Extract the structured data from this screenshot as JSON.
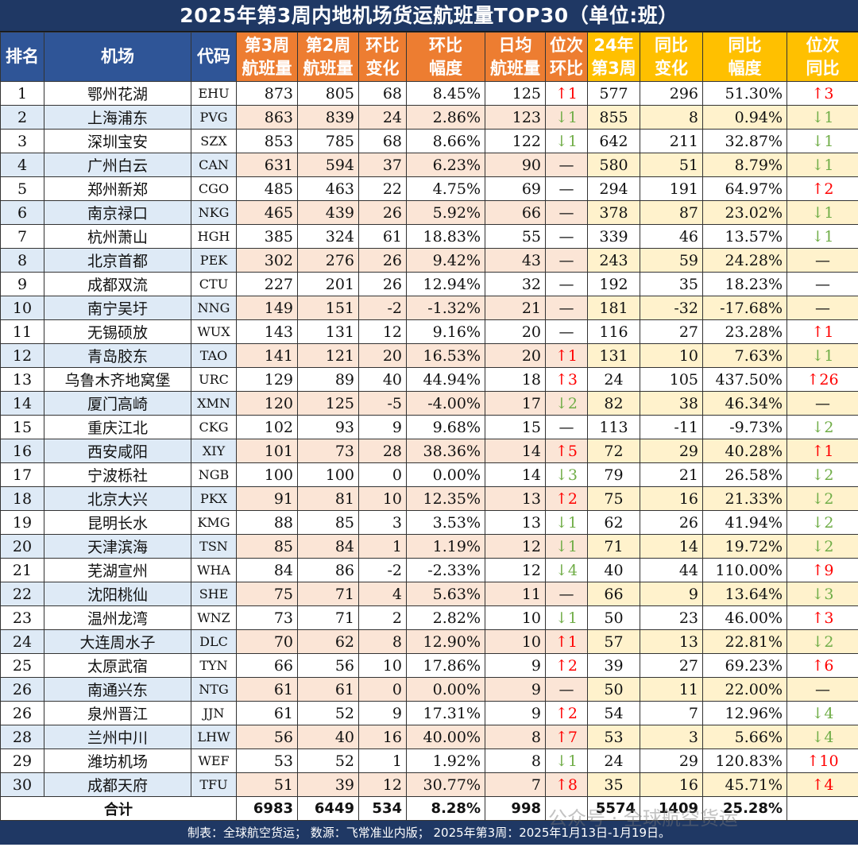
{
  "title": "2025年第3周内地机场货运航班量TOP30（单位:班）",
  "headers": [
    {
      "l1": "排名",
      "l2": "",
      "style": "blue"
    },
    {
      "l1": "机场",
      "l2": "",
      "style": "blue"
    },
    {
      "l1": "代码",
      "l2": "",
      "style": "blue"
    },
    {
      "l1": "第3周",
      "l2": "航班量",
      "style": "orange"
    },
    {
      "l1": "第2周",
      "l2": "航班量",
      "style": "orange"
    },
    {
      "l1": "环比",
      "l2": "变化",
      "style": "orange"
    },
    {
      "l1": "环比",
      "l2": "幅度",
      "style": "orange"
    },
    {
      "l1": "日均",
      "l2": "航班量",
      "style": "orange"
    },
    {
      "l1": "位次",
      "l2": "环比",
      "style": "orange"
    },
    {
      "l1": "24年",
      "l2": "第3周",
      "style": "gold"
    },
    {
      "l1": "同比",
      "l2": "变化",
      "style": "gold"
    },
    {
      "l1": "同比",
      "l2": "幅度",
      "style": "gold"
    },
    {
      "l1": "位次",
      "l2": "同比",
      "style": "gold"
    }
  ],
  "rows": [
    {
      "rank": "1",
      "airport": "鄂州花湖",
      "code": "EHU",
      "w3": "873",
      "w2": "805",
      "mom": "68",
      "momPct": "8.45%",
      "daily": "125",
      "rankMom": {
        "dir": "up",
        "text": "↑1"
      },
      "ly": "577",
      "yoy": "296",
      "yoyPct": "51.30%",
      "rankYoy": {
        "dir": "up",
        "text": "↑3"
      }
    },
    {
      "rank": "2",
      "airport": "上海浦东",
      "code": "PVG",
      "w3": "863",
      "w2": "839",
      "mom": "24",
      "momPct": "2.86%",
      "daily": "123",
      "rankMom": {
        "dir": "down",
        "text": "↓1"
      },
      "ly": "855",
      "yoy": "8",
      "yoyPct": "0.94%",
      "rankYoy": {
        "dir": "down",
        "text": "↓1"
      }
    },
    {
      "rank": "3",
      "airport": "深圳宝安",
      "code": "SZX",
      "w3": "853",
      "w2": "785",
      "mom": "68",
      "momPct": "8.66%",
      "daily": "122",
      "rankMom": {
        "dir": "down",
        "text": "↓1"
      },
      "ly": "642",
      "yoy": "211",
      "yoyPct": "32.87%",
      "rankYoy": {
        "dir": "down",
        "text": "↓1"
      }
    },
    {
      "rank": "4",
      "airport": "广州白云",
      "code": "CAN",
      "w3": "631",
      "w2": "594",
      "mom": "37",
      "momPct": "6.23%",
      "daily": "90",
      "rankMom": {
        "dir": "same",
        "text": "—"
      },
      "ly": "580",
      "yoy": "51",
      "yoyPct": "8.79%",
      "rankYoy": {
        "dir": "down",
        "text": "↓1"
      }
    },
    {
      "rank": "5",
      "airport": "郑州新郑",
      "code": "CGO",
      "w3": "485",
      "w2": "463",
      "mom": "22",
      "momPct": "4.75%",
      "daily": "69",
      "rankMom": {
        "dir": "same",
        "text": "—"
      },
      "ly": "294",
      "yoy": "191",
      "yoyPct": "64.97%",
      "rankYoy": {
        "dir": "up",
        "text": "↑2"
      }
    },
    {
      "rank": "6",
      "airport": "南京禄口",
      "code": "NKG",
      "w3": "465",
      "w2": "439",
      "mom": "26",
      "momPct": "5.92%",
      "daily": "66",
      "rankMom": {
        "dir": "same",
        "text": "—"
      },
      "ly": "378",
      "yoy": "87",
      "yoyPct": "23.02%",
      "rankYoy": {
        "dir": "down",
        "text": "↓1"
      }
    },
    {
      "rank": "7",
      "airport": "杭州萧山",
      "code": "HGH",
      "w3": "385",
      "w2": "324",
      "mom": "61",
      "momPct": "18.83%",
      "daily": "55",
      "rankMom": {
        "dir": "same",
        "text": "—"
      },
      "ly": "339",
      "yoy": "46",
      "yoyPct": "13.57%",
      "rankYoy": {
        "dir": "down",
        "text": "↓1"
      }
    },
    {
      "rank": "8",
      "airport": "北京首都",
      "code": "PEK",
      "w3": "302",
      "w2": "276",
      "mom": "26",
      "momPct": "9.42%",
      "daily": "43",
      "rankMom": {
        "dir": "same",
        "text": "—"
      },
      "ly": "243",
      "yoy": "59",
      "yoyPct": "24.28%",
      "rankYoy": {
        "dir": "same",
        "text": "—"
      }
    },
    {
      "rank": "9",
      "airport": "成都双流",
      "code": "CTU",
      "w3": "227",
      "w2": "201",
      "mom": "26",
      "momPct": "12.94%",
      "daily": "32",
      "rankMom": {
        "dir": "same",
        "text": "—"
      },
      "ly": "192",
      "yoy": "35",
      "yoyPct": "18.23%",
      "rankYoy": {
        "dir": "same",
        "text": "—"
      }
    },
    {
      "rank": "10",
      "airport": "南宁吴圩",
      "code": "NNG",
      "w3": "149",
      "w2": "151",
      "mom": "-2",
      "momPct": "-1.32%",
      "daily": "21",
      "rankMom": {
        "dir": "same",
        "text": "—"
      },
      "ly": "181",
      "yoy": "-32",
      "yoyPct": "-17.68%",
      "rankYoy": {
        "dir": "same",
        "text": "—"
      }
    },
    {
      "rank": "11",
      "airport": "无锡硕放",
      "code": "WUX",
      "w3": "143",
      "w2": "131",
      "mom": "12",
      "momPct": "9.16%",
      "daily": "20",
      "rankMom": {
        "dir": "same",
        "text": "—"
      },
      "ly": "116",
      "yoy": "27",
      "yoyPct": "23.28%",
      "rankYoy": {
        "dir": "up",
        "text": "↑1"
      }
    },
    {
      "rank": "12",
      "airport": "青岛胶东",
      "code": "TAO",
      "w3": "141",
      "w2": "121",
      "mom": "20",
      "momPct": "16.53%",
      "daily": "20",
      "rankMom": {
        "dir": "up",
        "text": "↑1"
      },
      "ly": "131",
      "yoy": "10",
      "yoyPct": "7.63%",
      "rankYoy": {
        "dir": "down",
        "text": "↓1"
      }
    },
    {
      "rank": "13",
      "airport": "乌鲁木齐地窝堡",
      "code": "URC",
      "w3": "129",
      "w2": "89",
      "mom": "40",
      "momPct": "44.94%",
      "daily": "18",
      "rankMom": {
        "dir": "up",
        "text": "↑3"
      },
      "ly": "24",
      "yoy": "105",
      "yoyPct": "437.50%",
      "rankYoy": {
        "dir": "up",
        "text": "↑26"
      }
    },
    {
      "rank": "14",
      "airport": "厦门高崎",
      "code": "XMN",
      "w3": "120",
      "w2": "125",
      "mom": "-5",
      "momPct": "-4.00%",
      "daily": "17",
      "rankMom": {
        "dir": "down",
        "text": "↓2"
      },
      "ly": "82",
      "yoy": "38",
      "yoyPct": "46.34%",
      "rankYoy": {
        "dir": "same",
        "text": "—"
      }
    },
    {
      "rank": "15",
      "airport": "重庆江北",
      "code": "CKG",
      "w3": "102",
      "w2": "93",
      "mom": "9",
      "momPct": "9.68%",
      "daily": "15",
      "rankMom": {
        "dir": "same",
        "text": "—"
      },
      "ly": "113",
      "yoy": "-11",
      "yoyPct": "-9.73%",
      "rankYoy": {
        "dir": "down",
        "text": "↓2"
      }
    },
    {
      "rank": "16",
      "airport": "西安咸阳",
      "code": "XIY",
      "w3": "101",
      "w2": "73",
      "mom": "28",
      "momPct": "38.36%",
      "daily": "14",
      "rankMom": {
        "dir": "up",
        "text": "↑5"
      },
      "ly": "72",
      "yoy": "29",
      "yoyPct": "40.28%",
      "rankYoy": {
        "dir": "up",
        "text": "↑1"
      }
    },
    {
      "rank": "17",
      "airport": "宁波栎社",
      "code": "NGB",
      "w3": "100",
      "w2": "100",
      "mom": "0",
      "momPct": "0.00%",
      "daily": "14",
      "rankMom": {
        "dir": "down",
        "text": "↓3"
      },
      "ly": "79",
      "yoy": "21",
      "yoyPct": "26.58%",
      "rankYoy": {
        "dir": "down",
        "text": "↓2"
      }
    },
    {
      "rank": "18",
      "airport": "北京大兴",
      "code": "PKX",
      "w3": "91",
      "w2": "81",
      "mom": "10",
      "momPct": "12.35%",
      "daily": "13",
      "rankMom": {
        "dir": "up",
        "text": "↑2"
      },
      "ly": "75",
      "yoy": "16",
      "yoyPct": "21.33%",
      "rankYoy": {
        "dir": "down",
        "text": "↓2"
      }
    },
    {
      "rank": "19",
      "airport": "昆明长水",
      "code": "KMG",
      "w3": "88",
      "w2": "85",
      "mom": "3",
      "momPct": "3.53%",
      "daily": "13",
      "rankMom": {
        "dir": "down",
        "text": "↓1"
      },
      "ly": "62",
      "yoy": "26",
      "yoyPct": "41.94%",
      "rankYoy": {
        "dir": "down",
        "text": "↓2"
      }
    },
    {
      "rank": "20",
      "airport": "天津滨海",
      "code": "TSN",
      "w3": "85",
      "w2": "84",
      "mom": "1",
      "momPct": "1.19%",
      "daily": "12",
      "rankMom": {
        "dir": "down",
        "text": "↓1"
      },
      "ly": "71",
      "yoy": "14",
      "yoyPct": "19.72%",
      "rankYoy": {
        "dir": "down",
        "text": "↓2"
      }
    },
    {
      "rank": "21",
      "airport": "芜湖宣州",
      "code": "WHA",
      "w3": "84",
      "w2": "86",
      "mom": "-2",
      "momPct": "-2.33%",
      "daily": "12",
      "rankMom": {
        "dir": "down",
        "text": "↓4"
      },
      "ly": "40",
      "yoy": "44",
      "yoyPct": "110.00%",
      "rankYoy": {
        "dir": "up",
        "text": "↑9"
      }
    },
    {
      "rank": "22",
      "airport": "沈阳桃仙",
      "code": "SHE",
      "w3": "75",
      "w2": "71",
      "mom": "4",
      "momPct": "5.63%",
      "daily": "11",
      "rankMom": {
        "dir": "same",
        "text": "—"
      },
      "ly": "66",
      "yoy": "9",
      "yoyPct": "13.64%",
      "rankYoy": {
        "dir": "down",
        "text": "↓3"
      }
    },
    {
      "rank": "23",
      "airport": "温州龙湾",
      "code": "WNZ",
      "w3": "73",
      "w2": "71",
      "mom": "2",
      "momPct": "2.82%",
      "daily": "10",
      "rankMom": {
        "dir": "down",
        "text": "↓1"
      },
      "ly": "50",
      "yoy": "23",
      "yoyPct": "46.00%",
      "rankYoy": {
        "dir": "up",
        "text": "↑3"
      }
    },
    {
      "rank": "24",
      "airport": "大连周水子",
      "code": "DLC",
      "w3": "70",
      "w2": "62",
      "mom": "8",
      "momPct": "12.90%",
      "daily": "10",
      "rankMom": {
        "dir": "up",
        "text": "↑1"
      },
      "ly": "57",
      "yoy": "13",
      "yoyPct": "22.81%",
      "rankYoy": {
        "dir": "down",
        "text": "↓2"
      }
    },
    {
      "rank": "25",
      "airport": "太原武宿",
      "code": "TYN",
      "w3": "66",
      "w2": "56",
      "mom": "10",
      "momPct": "17.86%",
      "daily": "9",
      "rankMom": {
        "dir": "up",
        "text": "↑2"
      },
      "ly": "39",
      "yoy": "27",
      "yoyPct": "69.23%",
      "rankYoy": {
        "dir": "up",
        "text": "↑6"
      }
    },
    {
      "rank": "26",
      "airport": "南通兴东",
      "code": "NTG",
      "w3": "61",
      "w2": "61",
      "mom": "0",
      "momPct": "0.00%",
      "daily": "9",
      "rankMom": {
        "dir": "same",
        "text": "—"
      },
      "ly": "50",
      "yoy": "11",
      "yoyPct": "22.00%",
      "rankYoy": {
        "dir": "same",
        "text": "—"
      }
    },
    {
      "rank": "26",
      "airport": "泉州晋江",
      "code": "JJN",
      "w3": "61",
      "w2": "52",
      "mom": "9",
      "momPct": "17.31%",
      "daily": "9",
      "rankMom": {
        "dir": "up",
        "text": "↑2"
      },
      "ly": "54",
      "yoy": "7",
      "yoyPct": "12.96%",
      "rankYoy": {
        "dir": "down",
        "text": "↓4"
      }
    },
    {
      "rank": "28",
      "airport": "兰州中川",
      "code": "LHW",
      "w3": "56",
      "w2": "40",
      "mom": "16",
      "momPct": "40.00%",
      "daily": "8",
      "rankMom": {
        "dir": "up",
        "text": "↑7"
      },
      "ly": "53",
      "yoy": "3",
      "yoyPct": "5.66%",
      "rankYoy": {
        "dir": "down",
        "text": "↓4"
      }
    },
    {
      "rank": "29",
      "airport": "潍坊机场",
      "code": "WEF",
      "w3": "53",
      "w2": "52",
      "mom": "1",
      "momPct": "1.92%",
      "daily": "8",
      "rankMom": {
        "dir": "down",
        "text": "↓1"
      },
      "ly": "24",
      "yoy": "29",
      "yoyPct": "120.83%",
      "rankYoy": {
        "dir": "up",
        "text": "↑10"
      }
    },
    {
      "rank": "30",
      "airport": "成都天府",
      "code": "TFU",
      "w3": "51",
      "w2": "39",
      "mom": "12",
      "momPct": "30.77%",
      "daily": "7",
      "rankMom": {
        "dir": "up",
        "text": "↑8"
      },
      "ly": "35",
      "yoy": "16",
      "yoyPct": "45.71%",
      "rankYoy": {
        "dir": "up",
        "text": "↑4"
      }
    }
  ],
  "total": {
    "label": "合计",
    "w3": "6983",
    "w2": "6449",
    "mom": "534",
    "momPct": "8.28%",
    "daily": "998",
    "ly": "5574",
    "yoy": "1409",
    "yoyPct": "25.28%"
  },
  "watermark": "公众号 · 全球航空货运",
  "footer": "制表：全球航空货运；  数源：飞常准业内版；  2025年第3周：2025年1月13日-1月19日。",
  "colors": {
    "headerBlue": "#2f5597",
    "headerOrange": "#ed7d31",
    "headerGold": "#ffc000",
    "titleNavy": "#1f3864",
    "up": "#ff0000",
    "down": "#70ad47"
  }
}
